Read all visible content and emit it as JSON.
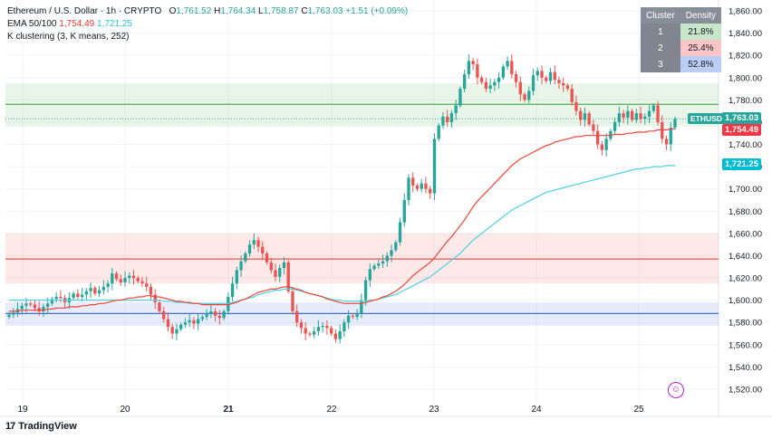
{
  "legend": {
    "line1": {
      "symbol": "Ethereum / U.S. Dollar · 1h · CRYPTO",
      "o_label": "O",
      "o": "1,761.52",
      "h_label": "H",
      "h": "1,764.34",
      "l_label": "L",
      "l": "1,758.87",
      "c_label": "C",
      "c": "1,763.03",
      "change": "+1.51 (+0.09%)"
    },
    "line2": {
      "label": "EMA 50/100",
      "ema50": "1,754.49",
      "ema100": "1,721.25"
    },
    "line3": {
      "label": "K clustering (3, K means, 252)"
    }
  },
  "clusters": {
    "header": [
      "Cluster",
      "Density"
    ],
    "rows": [
      {
        "id": "1",
        "density": "21.8%",
        "color": "#c8e6c9"
      },
      {
        "id": "2",
        "density": "25.4%",
        "color": "#f8c6c6"
      },
      {
        "id": "3",
        "density": "52.8%",
        "color": "#bbcdf5"
      }
    ]
  },
  "price_tags": {
    "symbol": "ETHUSD",
    "last": "1,763.03",
    "ema50": "1,754.49",
    "ema100": "1,721.25"
  },
  "branding": {
    "logo_mark": "17",
    "name": "TradingView"
  },
  "icons": {
    "emoji": "smiley-icon"
  },
  "colors": {
    "up": "#26a69a",
    "down": "#ef5350",
    "ema50": "#f44336",
    "ema100": "#4dd0e1",
    "zone_green": "#4caf50",
    "zone_red": "#ef5350",
    "zone_blue": "#3f6fd8"
  },
  "chart_data": {
    "type": "candlestick",
    "title": "Ethereum / U.S. Dollar",
    "interval": "1h",
    "y_ticks": [
      1860,
      1840,
      1820,
      1800,
      1780,
      1760,
      1740,
      1720,
      1700,
      1680,
      1660,
      1640,
      1620,
      1600,
      1580,
      1560,
      1540,
      1520
    ],
    "y_tick_labels": [
      "1,860.00",
      "1,840.00",
      "1,820.00",
      "1,800.00",
      "1,780.00",
      "1,760.00",
      "1,740.00",
      "1,720.00",
      "1,700.00",
      "1,680.00",
      "1,660.00",
      "1,640.00",
      "1,620.00",
      "1,600.00",
      "1,580.00",
      "1,560.00",
      "1,540.00",
      "1,520.00"
    ],
    "ylim": [
      1510,
      1870
    ],
    "x_ticks": [
      "19",
      "20",
      "21",
      "22",
      "23",
      "24",
      "25"
    ],
    "x_tick_bold": [
      "21"
    ],
    "zones": [
      {
        "cluster": "1",
        "low": 1756,
        "high": 1795,
        "center": 1776
      },
      {
        "cluster": "2",
        "low": 1615,
        "high": 1660,
        "center": 1637
      },
      {
        "cluster": "3",
        "low": 1577,
        "high": 1598,
        "center": 1588
      }
    ],
    "closes": [
      1587,
      1589,
      1592,
      1595,
      1597,
      1596,
      1593,
      1590,
      1594,
      1597,
      1601,
      1603,
      1602,
      1598,
      1602,
      1606,
      1603,
      1605,
      1608,
      1611,
      1606,
      1609,
      1612,
      1615,
      1624,
      1619,
      1616,
      1620,
      1622,
      1620,
      1617,
      1615,
      1612,
      1605,
      1598,
      1590,
      1583,
      1576,
      1570,
      1574,
      1578,
      1580,
      1582,
      1579,
      1583,
      1585,
      1588,
      1590,
      1586,
      1584,
      1590,
      1603,
      1615,
      1627,
      1635,
      1642,
      1650,
      1654,
      1648,
      1642,
      1634,
      1627,
      1621,
      1629,
      1634,
      1608,
      1590,
      1580,
      1575,
      1570,
      1569,
      1572,
      1576,
      1577,
      1575,
      1570,
      1565,
      1572,
      1580,
      1586,
      1585,
      1588,
      1600,
      1618,
      1628,
      1631,
      1633,
      1635,
      1640,
      1645,
      1652,
      1670,
      1690,
      1710,
      1703,
      1700,
      1705,
      1700,
      1696,
      1745,
      1757,
      1765,
      1760,
      1768,
      1775,
      1790,
      1803,
      1815,
      1812,
      1800,
      1796,
      1790,
      1793,
      1796,
      1800,
      1810,
      1815,
      1803,
      1796,
      1785,
      1780,
      1788,
      1802,
      1806,
      1800,
      1797,
      1805,
      1798,
      1795,
      1793,
      1790,
      1778,
      1770,
      1762,
      1768,
      1758,
      1752,
      1740,
      1735,
      1745,
      1752,
      1760,
      1768,
      1764,
      1770,
      1762,
      1768,
      1763,
      1765,
      1770,
      1775,
      1760,
      1745,
      1740,
      1755,
      1763
    ],
    "ema50": [
      1590,
      1590,
      1590,
      1591,
      1591,
      1591,
      1591,
      1591,
      1591,
      1592,
      1592,
      1593,
      1593,
      1593,
      1594,
      1594,
      1594,
      1595,
      1595,
      1596,
      1596,
      1597,
      1597,
      1598,
      1599,
      1600,
      1600,
      1601,
      1602,
      1602,
      1603,
      1603,
      1604,
      1604,
      1603,
      1603,
      1602,
      1601,
      1600,
      1599,
      1599,
      1598,
      1598,
      1597,
      1597,
      1596,
      1596,
      1596,
      1596,
      1596,
      1596,
      1596,
      1597,
      1598,
      1600,
      1601,
      1603,
      1605,
      1607,
      1608,
      1609,
      1610,
      1610,
      1611,
      1612,
      1612,
      1611,
      1610,
      1609,
      1607,
      1606,
      1605,
      1604,
      1603,
      1601,
      1600,
      1599,
      1598,
      1597,
      1597,
      1597,
      1597,
      1597,
      1598,
      1599,
      1600,
      1601,
      1603,
      1604,
      1606,
      1608,
      1611,
      1614,
      1618,
      1622,
      1625,
      1628,
      1631,
      1634,
      1638,
      1643,
      1648,
      1653,
      1657,
      1662,
      1667,
      1672,
      1678,
      1684,
      1689,
      1693,
      1697,
      1701,
      1705,
      1709,
      1713,
      1717,
      1721,
      1724,
      1727,
      1729,
      1731,
      1733,
      1735,
      1737,
      1739,
      1740,
      1742,
      1743,
      1744,
      1745,
      1746,
      1747,
      1747,
      1748,
      1748,
      1748,
      1748,
      1748,
      1748,
      1748,
      1749,
      1749,
      1749,
      1750,
      1750,
      1751,
      1751,
      1751,
      1752,
      1752,
      1753,
      1753,
      1753,
      1754,
      1754
    ],
    "ema100": [
      1600,
      1600,
      1600,
      1600,
      1600,
      1600,
      1600,
      1600,
      1600,
      1600,
      1600,
      1600,
      1600,
      1600,
      1600,
      1600,
      1600,
      1600,
      1600,
      1600,
      1600,
      1600,
      1600,
      1600,
      1600,
      1600,
      1600,
      1600,
      1600,
      1600,
      1600,
      1600,
      1600,
      1600,
      1600,
      1600,
      1599,
      1599,
      1599,
      1598,
      1598,
      1598,
      1597,
      1597,
      1597,
      1597,
      1597,
      1597,
      1597,
      1597,
      1597,
      1597,
      1598,
      1599,
      1600,
      1601,
      1602,
      1603,
      1605,
      1606,
      1607,
      1608,
      1609,
      1609,
      1610,
      1610,
      1610,
      1609,
      1608,
      1607,
      1606,
      1605,
      1604,
      1603,
      1602,
      1601,
      1600,
      1600,
      1599,
      1599,
      1599,
      1599,
      1599,
      1599,
      1600,
      1600,
      1601,
      1602,
      1603,
      1604,
      1605,
      1607,
      1609,
      1611,
      1613,
      1615,
      1617,
      1619,
      1621,
      1624,
      1627,
      1630,
      1633,
      1636,
      1639,
      1642,
      1646,
      1650,
      1654,
      1657,
      1660,
      1663,
      1666,
      1669,
      1672,
      1675,
      1678,
      1681,
      1683,
      1685,
      1687,
      1689,
      1691,
      1693,
      1695,
      1697,
      1698,
      1699,
      1700,
      1701,
      1702,
      1703,
      1704,
      1705,
      1706,
      1707,
      1708,
      1709,
      1710,
      1711,
      1712,
      1713,
      1714,
      1715,
      1716,
      1717,
      1718,
      1718,
      1719,
      1719,
      1720,
      1720,
      1720,
      1721,
      1721,
      1721
    ]
  }
}
